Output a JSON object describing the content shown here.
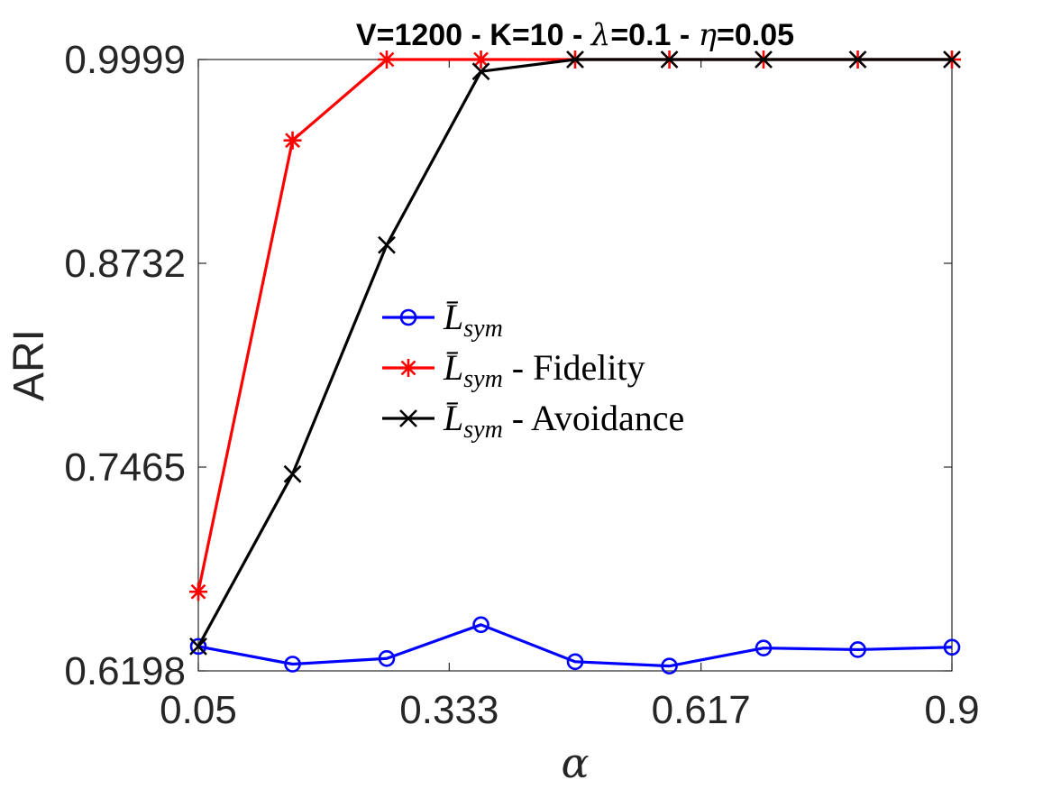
{
  "chart_data": {
    "type": "line",
    "title_parts": [
      "V=1200 - K=10 - ",
      "λ",
      "=0.1 - ",
      "η",
      "=0.05"
    ],
    "xlabel": "α",
    "ylabel": "ARI",
    "xlim": [
      0.05,
      0.9
    ],
    "ylim": [
      0.6198,
      0.9999
    ],
    "xticks": [
      0.05,
      0.333,
      0.617,
      0.9
    ],
    "xtick_labels": [
      "0.05",
      "0.333",
      "0.617",
      "0.9"
    ],
    "yticks": [
      0.6198,
      0.7465,
      0.8732,
      0.9999
    ],
    "ytick_labels": [
      "0.6198",
      "0.7465",
      "0.8732",
      "0.9999"
    ],
    "x": [
      0.05,
      0.1563,
      0.2625,
      0.3688,
      0.475,
      0.5813,
      0.6875,
      0.7938,
      0.9
    ],
    "legend_position": "center",
    "series": [
      {
        "name": "L̄sym",
        "legend_main": "L̄",
        "legend_sub": "sym",
        "legend_suffix": "",
        "color": "#0000ff",
        "marker": "circle",
        "values": [
          0.635,
          0.624,
          0.6275,
          0.6485,
          0.6255,
          0.6228,
          0.634,
          0.633,
          0.6345
        ]
      },
      {
        "name": "L̄sym - Fidelity",
        "legend_main": "L̄",
        "legend_sub": "sym",
        "legend_suffix": " - Fidelity",
        "color": "#ff0000",
        "marker": "asterisk",
        "values": [
          0.669,
          0.9496,
          0.9999,
          0.9999,
          0.9999,
          0.9999,
          0.9999,
          0.9999,
          0.9999
        ]
      },
      {
        "name": "L̄sym - Avoidance",
        "legend_main": "L̄",
        "legend_sub": "sym",
        "legend_suffix": " - Avoidance",
        "color": "#000000",
        "marker": "x",
        "values": [
          0.635,
          0.7422,
          0.8846,
          0.9925,
          0.9999,
          0.9999,
          0.9999,
          0.9999,
          0.9999
        ]
      }
    ]
  }
}
